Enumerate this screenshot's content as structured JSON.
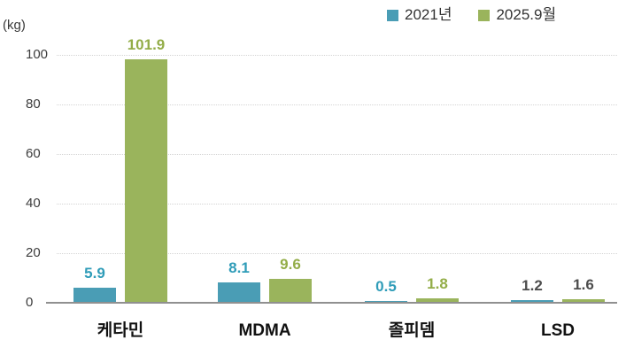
{
  "chart_data": {
    "type": "bar",
    "title": "",
    "unit": "(kg)",
    "categories": [
      "케타민",
      "MDMA",
      "졸피뎀",
      "LSD"
    ],
    "series": [
      {
        "name": "2021년",
        "color": "#4a9db5",
        "values": [
          5.9,
          8.1,
          0.5,
          1.2
        ],
        "value_labels": [
          "5.9",
          "8.1",
          "0.5",
          "1.2"
        ],
        "value_label_colors": [
          "#2f9cb8",
          "#2f9cb8",
          "#2f9cb8",
          "#4d4d4d"
        ]
      },
      {
        "name": "2025.9월",
        "color": "#9ab45c",
        "values": [
          101.9,
          9.6,
          1.8,
          1.6
        ],
        "value_labels": [
          "101.9",
          "9.6",
          "1.8",
          "1.6"
        ],
        "value_label_colors": [
          "#93ad48",
          "#93ad48",
          "#93ad48",
          "#4d4d4d"
        ]
      }
    ],
    "y_axis": {
      "ticks": [
        0,
        20,
        40,
        60,
        80,
        100
      ],
      "range": [
        0,
        100
      ],
      "grid": "dotted"
    },
    "legend_position": "top-right",
    "colors": {
      "grid": "#d4d4d4",
      "axis": "#909090",
      "tick_text": "#3d3d3d",
      "category_text": "#111111"
    }
  }
}
